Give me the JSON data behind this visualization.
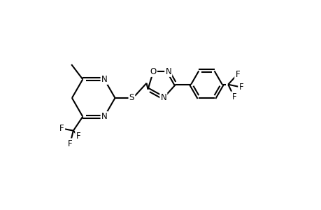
{
  "bg_color": "#ffffff",
  "line_color": "#000000",
  "line_width": 1.5,
  "font_size": 8.5,
  "figsize": [
    4.6,
    3.0
  ],
  "dpi": 100,
  "xlim": [
    0,
    9.2
  ],
  "ylim": [
    0,
    6.0
  ]
}
